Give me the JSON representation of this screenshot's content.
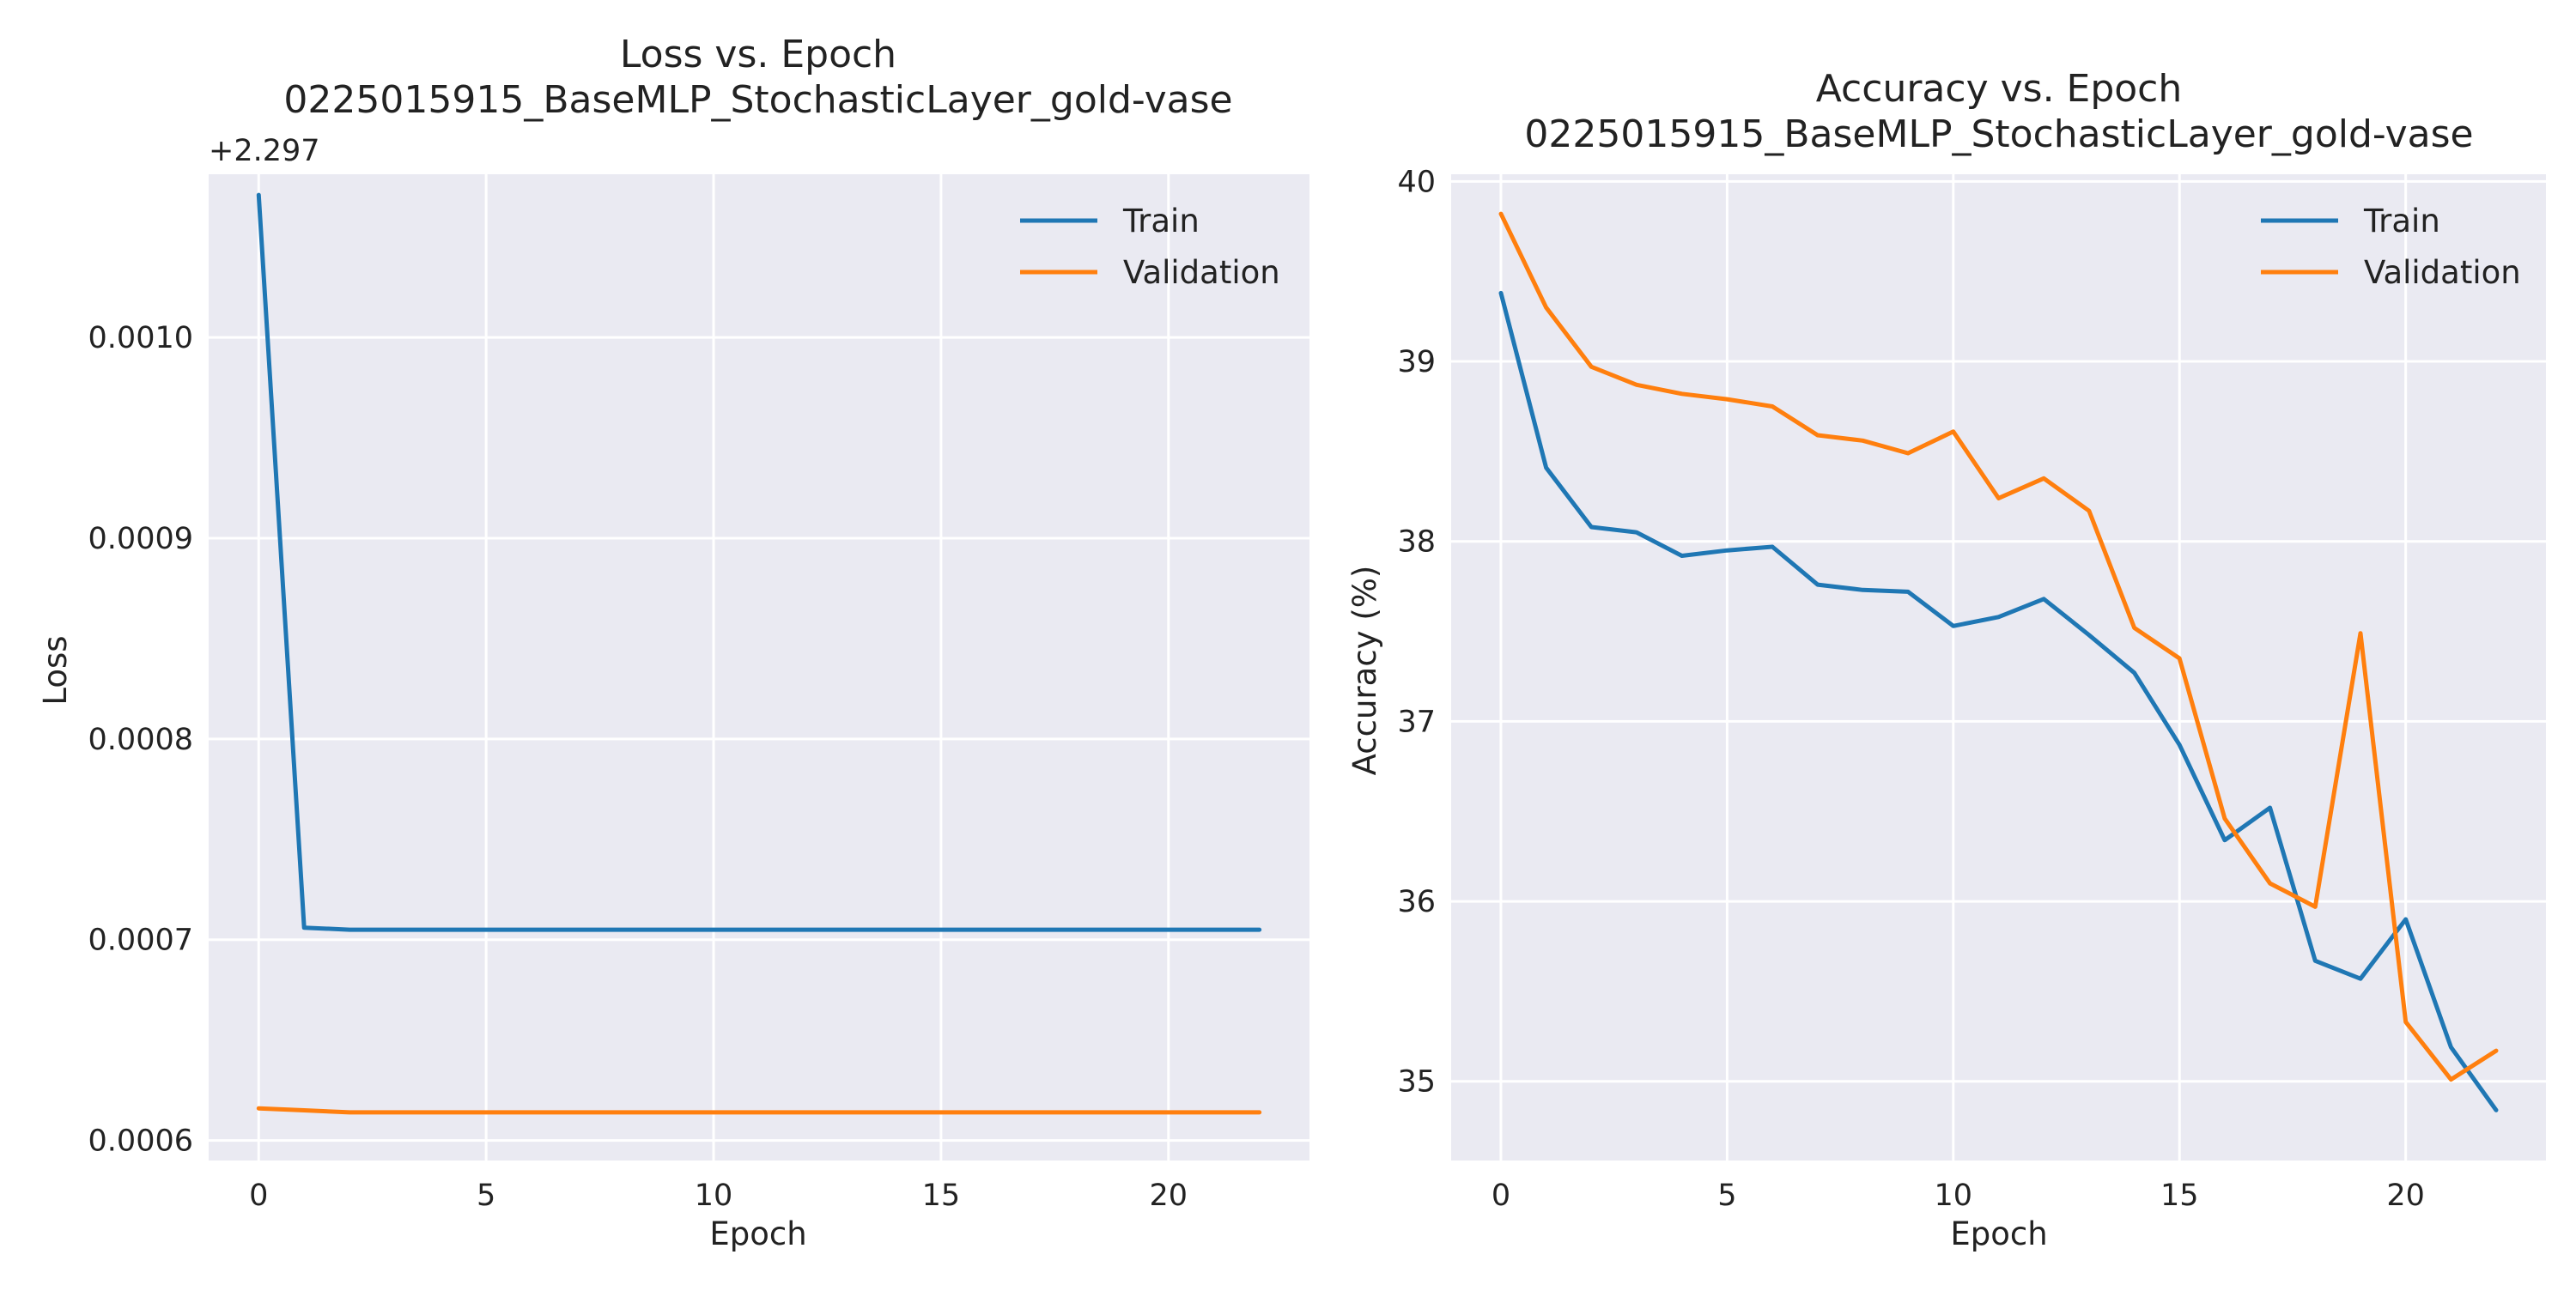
{
  "chart_data": [
    {
      "type": "line",
      "title": "Loss vs. Epoch",
      "subtitle": "0225015915_BaseMLP_StochasticLayer_gold-vase",
      "xlabel": "Epoch",
      "ylabel": "Loss",
      "offset_label": "+2.297",
      "xlim": [
        -1.1,
        23.1
      ],
      "ylim": [
        0.00059,
        0.0010813
      ],
      "x_ticks": [
        0,
        5,
        10,
        15,
        20
      ],
      "y_ticks": [
        0.0006,
        0.0007,
        0.0008,
        0.0009,
        0.001
      ],
      "y_tick_labels": [
        "0.0006",
        "0.0007",
        "0.0008",
        "0.0009",
        "0.0010"
      ],
      "grid": true,
      "legend_position": "top-right",
      "x": [
        0,
        1,
        2,
        3,
        4,
        5,
        6,
        7,
        8,
        9,
        10,
        11,
        12,
        13,
        14,
        15,
        16,
        17,
        18,
        19,
        20,
        21,
        22
      ],
      "series": [
        {
          "name": "Train",
          "color": "#1f77b4",
          "values": [
            0.001071,
            0.000706,
            0.000705,
            0.000705,
            0.000705,
            0.000705,
            0.000705,
            0.000705,
            0.000705,
            0.000705,
            0.000705,
            0.000705,
            0.000705,
            0.000705,
            0.000705,
            0.000705,
            0.000705,
            0.000705,
            0.000705,
            0.000705,
            0.000705,
            0.000705,
            0.000705
          ]
        },
        {
          "name": "Validation",
          "color": "#ff7f0e",
          "values": [
            0.000616,
            0.000615,
            0.000614,
            0.000614,
            0.000614,
            0.000614,
            0.000614,
            0.000614,
            0.000614,
            0.000614,
            0.000614,
            0.000614,
            0.000614,
            0.000614,
            0.000614,
            0.000614,
            0.000614,
            0.000614,
            0.000614,
            0.000614,
            0.000614,
            0.000614,
            0.000614
          ]
        }
      ]
    },
    {
      "type": "line",
      "title": "Accuracy vs. Epoch",
      "subtitle": "0225015915_BaseMLP_StochasticLayer_gold-vase",
      "xlabel": "Epoch",
      "ylabel": "Accuracy (%)",
      "xlim": [
        -1.1,
        23.1
      ],
      "ylim": [
        34.56,
        40.04
      ],
      "x_ticks": [
        0,
        5,
        10,
        15,
        20
      ],
      "y_ticks": [
        35,
        36,
        37,
        38,
        39,
        40
      ],
      "y_tick_labels": [
        "35",
        "36",
        "37",
        "38",
        "39",
        "40"
      ],
      "grid": true,
      "legend_position": "top-right",
      "x": [
        0,
        1,
        2,
        3,
        4,
        5,
        6,
        7,
        8,
        9,
        10,
        11,
        12,
        13,
        14,
        15,
        16,
        17,
        18,
        19,
        20,
        21,
        22
      ],
      "series": [
        {
          "name": "Train",
          "color": "#1f77b4",
          "values": [
            39.38,
            38.41,
            38.08,
            38.05,
            37.92,
            37.95,
            37.97,
            37.76,
            37.73,
            37.72,
            37.53,
            37.58,
            37.68,
            37.48,
            37.27,
            36.87,
            36.34,
            36.52,
            35.67,
            35.57,
            35.9,
            35.19,
            34.84
          ]
        },
        {
          "name": "Validation",
          "color": "#ff7f0e",
          "values": [
            39.82,
            39.3,
            38.97,
            38.87,
            38.82,
            38.79,
            38.75,
            38.59,
            38.56,
            38.49,
            38.61,
            38.24,
            38.35,
            38.17,
            37.52,
            37.35,
            36.46,
            36.1,
            35.97,
            37.49,
            35.33,
            35.01,
            35.17
          ]
        }
      ]
    }
  ]
}
